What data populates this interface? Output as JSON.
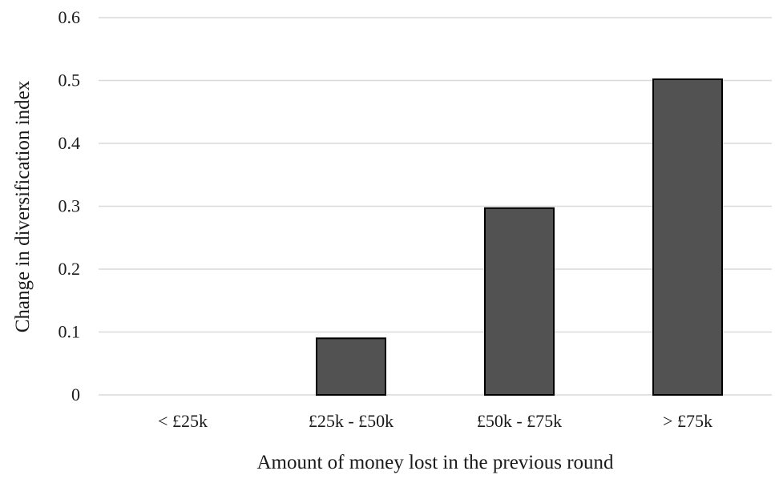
{
  "chart_data": {
    "type": "bar",
    "title": "",
    "xlabel": "Amount of money lost in the previous round",
    "ylabel": "Change in diversification index",
    "categories": [
      "< £25k",
      "£25k - £50k",
      "£50k - £75k",
      "> £75k"
    ],
    "values": [
      0.0,
      0.09,
      0.297,
      0.502
    ],
    "ylim": [
      0,
      0.6
    ],
    "yticks": [
      "0",
      "0.1",
      "0.2",
      "0.3",
      "0.4",
      "0.5",
      "0.6"
    ],
    "grid": true,
    "legend": "none",
    "colors": {
      "bar_fill": "#525252",
      "bar_edge": "#000000",
      "grid": "#d9d9d9"
    }
  }
}
